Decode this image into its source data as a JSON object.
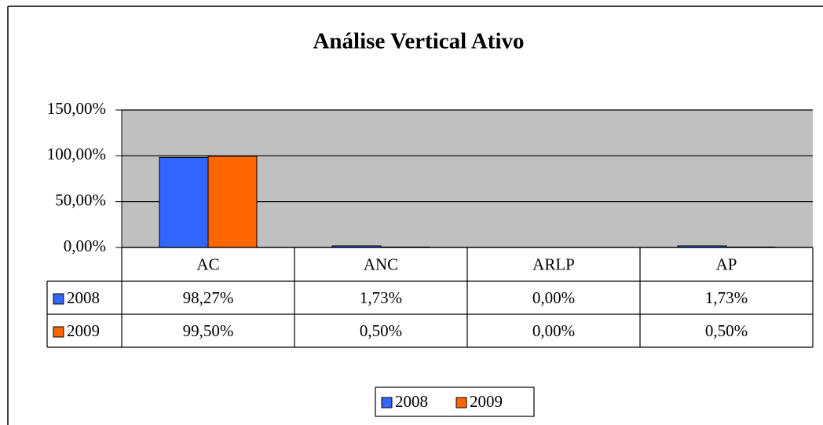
{
  "chart_data": {
    "type": "bar",
    "title": "Análise Vertical Ativo",
    "categories": [
      "AC",
      "ANC",
      "ARLP",
      "AP"
    ],
    "series": [
      {
        "name": "2008",
        "color": "#3366ff",
        "values": [
          98.27,
          1.73,
          0,
          1.73
        ],
        "value_labels": [
          "98,27%",
          "1,73%",
          "0,00%",
          "1,73%"
        ]
      },
      {
        "name": "2009",
        "color": "#ff6600",
        "values": [
          99.5,
          0.5,
          0,
          0.5
        ],
        "value_labels": [
          "99,50%",
          "0,50%",
          "0,00%",
          "0,50%"
        ]
      }
    ],
    "ylim": [
      0,
      150
    ],
    "yticks": [
      {
        "value": 0,
        "label": "0,00%"
      },
      {
        "value": 50,
        "label": "50,00%"
      },
      {
        "value": 100,
        "label": "100,00%"
      },
      {
        "value": 150,
        "label": "150,00%"
      }
    ],
    "grid": true,
    "legend": "bottom",
    "plot_background": "#c0c0c0"
  }
}
